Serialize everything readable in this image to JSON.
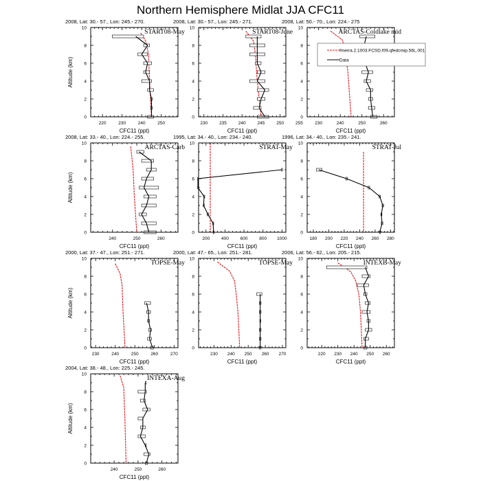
{
  "title": "Northern Hemisphere Midlat JJA CFC11",
  "legend": {
    "model_label": "fmerra.2.1003.FCSD.f09.qfedcmip.56L.001",
    "data_label": "Data",
    "model_color": "#e8141a",
    "data_color": "#000000"
  },
  "chart_data": {
    "type": "line",
    "xlabel": "CFC11 (ppt)",
    "ylabel": "Altitude (km)",
    "ylim": [
      0,
      10
    ],
    "yticks": [
      0,
      2,
      4,
      6,
      8,
      10
    ],
    "panels": [
      {
        "header": "2008, Lat:  30.- 57., Lon: 245.- 270.",
        "label": "START08-May",
        "xlim": [
          214,
          258.5
        ],
        "xticks": [
          220,
          230,
          240,
          250
        ],
        "model": [
          [
            239.5,
            9.4
          ],
          [
            242,
            8.5
          ],
          [
            243.5,
            7
          ],
          [
            244,
            4
          ],
          [
            245,
            0
          ]
        ],
        "data": [
          [
            237,
            9,
            225,
            241
          ],
          [
            243,
            8,
            241,
            244
          ],
          [
            240,
            7,
            238,
            243
          ],
          [
            243,
            6,
            241,
            245
          ],
          [
            242,
            5,
            241,
            244
          ],
          [
            244,
            4,
            240,
            245
          ],
          [
            244,
            3,
            243,
            246
          ],
          [
            245,
            2,
            244.5,
            245.5
          ],
          [
            245,
            1,
            244.5,
            245.5
          ],
          [
            245,
            0,
            243,
            246
          ]
        ]
      },
      {
        "header": "2008, Lat:  30.- 57., Lon: 245.- 271.",
        "label": "START08-June",
        "xlim": [
          228.6,
          251.5
        ],
        "xticks": [
          230,
          235,
          240,
          245,
          250,
          255
        ],
        "model": [
          [
            241,
            9.6
          ],
          [
            243,
            8.5
          ],
          [
            243.5,
            7
          ],
          [
            244,
            4
          ],
          [
            245,
            0
          ]
        ],
        "data": [
          [
            244,
            9,
            241,
            245
          ],
          [
            244,
            8,
            242,
            246
          ],
          [
            244,
            7,
            242,
            246
          ],
          [
            244,
            6,
            243.5,
            245
          ],
          [
            245,
            5,
            244,
            246
          ],
          [
            244,
            4,
            242,
            246
          ],
          [
            246,
            3,
            244,
            247
          ],
          [
            245,
            2,
            244,
            246
          ],
          [
            244.5,
            1,
            243,
            245
          ],
          [
            246,
            0,
            244,
            247
          ]
        ]
      },
      {
        "header": "2008, Lat:  50.- 70., Lon: 224.- 275",
        "label": "ARCTAS-Coldlake mid",
        "xlim": [
          224.7,
          265
        ],
        "xticks": [
          230,
          240,
          250,
          260
        ],
        "legend": true,
        "model": [
          [
            235.5,
            9.6
          ],
          [
            241,
            8.6
          ],
          [
            242.5,
            7
          ],
          [
            243.5,
            5
          ],
          [
            245,
            0
          ]
        ],
        "data": [
          [
            252,
            9,
            249,
            256
          ],
          [
            251,
            8,
            249,
            252
          ],
          [
            250,
            7,
            248,
            252
          ],
          [
            251.5,
            6,
            250,
            253
          ],
          [
            253,
            5,
            250,
            255
          ],
          [
            252,
            4,
            251,
            254
          ],
          [
            254,
            3,
            252,
            255
          ],
          [
            254,
            2,
            253,
            255
          ],
          [
            254.5,
            1,
            253,
            256
          ],
          [
            255,
            0,
            254,
            257
          ]
        ]
      },
      {
        "header": "2008, Lat:  33.- 40., Lon: 224.- 255.",
        "label": "ARCTAS-Carb",
        "xlim": [
          231,
          267
        ],
        "xticks": [
          240,
          250,
          260
        ],
        "model": [
          [
            247.5,
            9.6
          ],
          [
            248.5,
            7
          ],
          [
            249,
            4
          ],
          [
            250,
            0
          ]
        ],
        "data": [
          [
            251,
            9,
            250,
            253
          ],
          [
            256,
            8,
            252,
            257
          ],
          [
            256,
            7,
            254,
            258
          ],
          [
            254,
            6,
            252,
            257
          ],
          [
            253,
            5,
            251,
            259
          ],
          [
            255,
            4,
            253,
            258
          ],
          [
            254,
            3,
            252,
            258
          ],
          [
            252,
            2,
            251,
            254
          ],
          [
            254,
            1,
            252,
            258
          ],
          [
            255,
            0,
            253,
            258
          ]
        ]
      },
      {
        "header": "1995, Lat: 34.- 40., Lon: 234.- 240.",
        "label": "STRAT-May",
        "xlim": [
          122,
          1041
        ],
        "xticks": [
          200,
          400,
          600,
          800,
          1000
        ],
        "model": [
          [
            245,
            10
          ],
          [
            245,
            0
          ]
        ],
        "data": [
          [
            1000,
            7,
            995,
            1005
          ],
          [
            115,
            6,
            112,
            118
          ],
          [
            115,
            5,
            112,
            118
          ],
          [
            180,
            4,
            176,
            184
          ],
          [
            175,
            3,
            171,
            179
          ],
          [
            220,
            2,
            212,
            228
          ],
          [
            275,
            1,
            270,
            280
          ],
          [
            280,
            0,
            275,
            285
          ]
        ]
      },
      {
        "header": "1996, Lat: 34.- 40., Lon: 235.- 241.",
        "label": "STRAT-Jul",
        "xlim": [
          172,
          285
        ],
        "xticks": [
          180,
          200,
          220,
          240,
          260,
          280
        ],
        "model": [
          [
            245,
            9
          ],
          [
            245,
            0
          ]
        ],
        "data": [
          [
            187,
            7,
            184,
            191
          ],
          [
            223,
            6,
            222,
            224
          ],
          [
            252,
            5,
            251,
            253
          ],
          [
            266,
            4,
            265,
            267
          ],
          [
            270,
            3,
            269,
            271
          ],
          [
            268,
            2,
            267.5,
            268.5
          ],
          [
            269,
            1,
            268,
            270
          ],
          [
            266,
            0,
            265.5,
            266.5
          ]
        ]
      },
      {
        "header": "2000, Lat: 37.- 47., Lon: 251.- 271.",
        "label": "TOPSE-May",
        "xlim": [
          227.5,
          272
        ],
        "xticks": [
          230,
          240,
          250,
          260,
          270
        ],
        "model": [
          [
            240,
            9.4
          ],
          [
            242.5,
            8.3
          ],
          [
            243.5,
            7
          ],
          [
            244,
            4
          ],
          [
            245,
            0
          ]
        ],
        "data": [
          [
            256,
            5,
            255,
            258
          ],
          [
            257,
            4,
            256,
            258
          ],
          [
            257,
            3,
            256.5,
            257.5
          ],
          [
            258,
            2,
            257,
            258.5
          ],
          [
            257.5,
            1,
            256.5,
            258.5
          ],
          [
            259,
            0,
            258,
            259.5
          ]
        ]
      },
      {
        "header": "2000, Lat: 47.- 65., Lon: 251.- 281.",
        "label": "TOPSE-May",
        "xlim": [
          221,
          272
        ],
        "xticks": [
          230,
          240,
          250,
          260,
          270
        ],
        "model": [
          [
            232,
            9.6
          ],
          [
            239,
            8.6
          ],
          [
            242,
            7.5
          ],
          [
            243,
            6
          ],
          [
            244,
            4
          ],
          [
            245,
            0
          ]
        ],
        "data": [
          [
            257,
            6,
            255,
            258
          ],
          [
            257,
            5,
            256.5,
            257.5
          ],
          [
            257,
            4,
            256.5,
            257.5
          ],
          [
            257,
            3,
            256.8,
            257.2
          ],
          [
            257,
            2,
            256.5,
            257.5
          ],
          [
            257,
            1,
            256.5,
            257.5
          ],
          [
            257,
            0,
            256.5,
            257.5
          ]
        ]
      },
      {
        "header": "2006, Lat: 56.- 62., Lon: 205.- 215.",
        "label": "INTEXB-May",
        "xlim": [
          211,
          265
        ],
        "xticks": [
          220,
          230,
          240,
          250,
          260
        ],
        "model": [
          [
            230,
            9.5
          ],
          [
            238,
            8.5
          ],
          [
            241,
            7.5
          ],
          [
            243,
            6
          ],
          [
            244,
            4
          ],
          [
            245,
            0
          ]
        ],
        "data": [
          [
            247,
            9,
            223,
            248
          ],
          [
            249,
            8,
            245,
            250
          ],
          [
            246,
            7,
            242,
            249
          ],
          [
            247,
            6,
            246,
            248
          ],
          [
            249,
            5,
            247,
            250
          ],
          [
            248,
            4,
            245,
            250
          ],
          [
            249,
            3,
            248,
            250
          ],
          [
            249,
            2,
            247,
            251
          ],
          [
            247,
            1,
            246,
            249
          ],
          [
            247,
            0,
            246,
            248
          ]
        ]
      },
      {
        "header": "2004, Lat: 38.- 48., Lon: 225.- 245.",
        "label": "INTEXA-Aug",
        "xlim": [
          230.2,
          266.7
        ],
        "xticks": [
          240,
          250,
          260
        ],
        "model": [
          [
            242.5,
            9.8
          ],
          [
            244,
            8.5
          ],
          [
            244.5,
            5
          ],
          [
            245,
            0
          ]
        ],
        "data": [
          [
            253,
            9,
            253,
            253
          ],
          [
            253,
            8,
            250,
            253.5
          ],
          [
            252.5,
            7,
            251,
            253
          ],
          [
            254,
            6,
            252,
            255
          ],
          [
            252,
            5,
            250,
            252
          ],
          [
            252,
            4,
            251,
            253
          ],
          [
            251,
            3,
            250,
            253
          ],
          [
            253,
            2,
            253,
            253
          ],
          [
            254.5,
            1,
            252.5,
            255
          ],
          [
            253.5,
            0,
            253,
            254
          ]
        ]
      }
    ]
  }
}
